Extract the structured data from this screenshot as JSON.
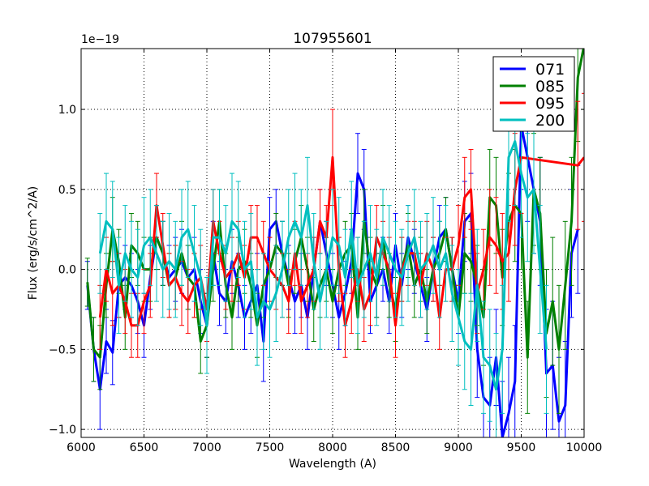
{
  "chart_data": {
    "type": "line",
    "title": "107955601",
    "xlabel": "Wavelength (A)",
    "ylabel": "Flux (erg/s/cm^2/A)",
    "offset_label": "1e−19",
    "xlim": [
      6000,
      10000
    ],
    "ylim": [
      -1.05,
      1.38
    ],
    "grid": true,
    "legend_position": "top-right",
    "xticks": [
      6000,
      6500,
      7000,
      7500,
      8000,
      8500,
      9000,
      9500,
      10000
    ],
    "xtick_labels": [
      "6000",
      "6500",
      "7000",
      "7500",
      "8000",
      "8500",
      "9000",
      "9500",
      "10000"
    ],
    "yticks": [
      -1.0,
      -0.5,
      0.0,
      0.5,
      1.0
    ],
    "ytick_labels": [
      "−1.0",
      "−0.5",
      "0.0",
      "0.5",
      "1.0"
    ],
    "series": [
      {
        "name": "071",
        "color": "#0000ff",
        "x": [
          6050,
          6100,
          6150,
          6200,
          6250,
          6300,
          6350,
          6400,
          6450,
          6500,
          6550,
          6600,
          6650,
          6700,
          6750,
          6800,
          6850,
          6900,
          6950,
          7000,
          7050,
          7100,
          7150,
          7200,
          7250,
          7300,
          7350,
          7400,
          7450,
          7500,
          7550,
          7600,
          7650,
          7700,
          7750,
          7800,
          7850,
          7900,
          7950,
          8000,
          8050,
          8100,
          8150,
          8200,
          8250,
          8300,
          8350,
          8400,
          8450,
          8500,
          8550,
          8600,
          8650,
          8700,
          8750,
          8800,
          8850,
          8900,
          8950,
          9000,
          9050,
          9100,
          9150,
          9200,
          9250,
          9300,
          9350,
          9400,
          9450,
          9500,
          9550,
          9600,
          9650,
          9700,
          9750,
          9800,
          9850,
          9900,
          9950
        ],
        "y": [
          -0.1,
          -0.5,
          -0.75,
          -0.45,
          -0.52,
          -0.1,
          -0.05,
          -0.1,
          -0.2,
          -0.35,
          -0.05,
          0.2,
          0.1,
          -0.05,
          0.0,
          0.05,
          -0.05,
          0.0,
          -0.2,
          -0.35,
          0.1,
          -0.15,
          -0.2,
          0.05,
          -0.1,
          -0.3,
          -0.2,
          -0.1,
          -0.45,
          0.25,
          0.3,
          0.1,
          -0.05,
          -0.2,
          -0.1,
          -0.3,
          0.0,
          0.3,
          0.1,
          -0.1,
          -0.3,
          -0.15,
          0.05,
          0.6,
          0.5,
          -0.2,
          -0.1,
          0.0,
          -0.2,
          0.15,
          -0.1,
          0.2,
          0.05,
          -0.1,
          -0.25,
          0.0,
          0.2,
          0.25,
          0.0,
          -0.2,
          0.3,
          0.35,
          -0.5,
          -0.8,
          -0.85,
          -0.55,
          -1.05,
          -0.9,
          -0.7,
          0.9,
          0.7,
          0.5,
          0.3,
          -0.65,
          -0.6,
          -0.95,
          -0.85,
          0.1,
          0.25
        ],
        "error": [
          0.15,
          0.2,
          0.25,
          0.2,
          0.2,
          0.2,
          0.2,
          0.2,
          0.2,
          0.2,
          0.2,
          0.2,
          0.2,
          0.2,
          0.2,
          0.2,
          0.2,
          0.2,
          0.2,
          0.2,
          0.2,
          0.2,
          0.2,
          0.2,
          0.2,
          0.2,
          0.2,
          0.2,
          0.25,
          0.2,
          0.2,
          0.2,
          0.2,
          0.2,
          0.2,
          0.2,
          0.2,
          0.2,
          0.2,
          0.2,
          0.2,
          0.2,
          0.2,
          0.25,
          0.25,
          0.2,
          0.2,
          0.2,
          0.2,
          0.2,
          0.2,
          0.2,
          0.2,
          0.2,
          0.2,
          0.2,
          0.2,
          0.2,
          0.2,
          0.2,
          0.25,
          0.25,
          0.3,
          0.3,
          0.3,
          0.3,
          0.35,
          0.35,
          0.35,
          0.4,
          0.4,
          0.4,
          0.4,
          0.4,
          0.4,
          0.4,
          0.4,
          0.4,
          0.4
        ]
      },
      {
        "name": "085",
        "color": "#008000",
        "x": [
          6050,
          6100,
          6150,
          6200,
          6250,
          6300,
          6350,
          6400,
          6450,
          6500,
          6550,
          6600,
          6650,
          6700,
          6750,
          6800,
          6850,
          6900,
          6950,
          7000,
          7050,
          7100,
          7150,
          7200,
          7250,
          7300,
          7350,
          7400,
          7450,
          7500,
          7550,
          7600,
          7650,
          7700,
          7750,
          7800,
          7850,
          7900,
          7950,
          8000,
          8050,
          8100,
          8150,
          8200,
          8250,
          8300,
          8350,
          8400,
          8450,
          8500,
          8550,
          8600,
          8650,
          8700,
          8750,
          8800,
          8850,
          8900,
          8950,
          9000,
          9050,
          9100,
          9150,
          9200,
          9250,
          9300,
          9350,
          9400,
          9450,
          9500,
          9550,
          9600,
          9650,
          9700,
          9750,
          9800,
          9850,
          9900,
          9950,
          10000
        ],
        "y": [
          -0.08,
          -0.5,
          -0.55,
          -0.1,
          0.25,
          0.05,
          -0.3,
          0.15,
          0.1,
          0.0,
          0.0,
          0.2,
          0.1,
          -0.1,
          -0.05,
          0.1,
          -0.05,
          -0.1,
          -0.45,
          -0.35,
          0.0,
          0.3,
          -0.1,
          -0.3,
          0.0,
          0.05,
          -0.1,
          -0.35,
          -0.1,
          0.0,
          0.15,
          0.1,
          -0.1,
          0.05,
          0.2,
          0.0,
          -0.25,
          -0.1,
          0.0,
          -0.2,
          0.0,
          0.1,
          0.15,
          -0.3,
          0.3,
          0.0,
          -0.1,
          0.2,
          -0.1,
          -0.25,
          0.0,
          0.15,
          -0.1,
          0.0,
          -0.2,
          0.0,
          0.1,
          0.25,
          0.0,
          -0.3,
          0.1,
          0.05,
          -0.1,
          -0.3,
          0.45,
          0.4,
          -0.05,
          0.3,
          0.4,
          0.35,
          -0.55,
          0.5,
          0.35,
          -0.4,
          -0.2,
          -0.5,
          -0.1,
          0.3,
          1.2,
          1.4
        ],
        "error": [
          0.15,
          0.2,
          0.2,
          0.2,
          0.2,
          0.2,
          0.2,
          0.2,
          0.2,
          0.2,
          0.2,
          0.2,
          0.2,
          0.2,
          0.2,
          0.2,
          0.2,
          0.2,
          0.2,
          0.2,
          0.2,
          0.2,
          0.2,
          0.2,
          0.2,
          0.2,
          0.2,
          0.2,
          0.2,
          0.2,
          0.2,
          0.2,
          0.2,
          0.2,
          0.2,
          0.2,
          0.2,
          0.2,
          0.2,
          0.2,
          0.2,
          0.2,
          0.2,
          0.2,
          0.2,
          0.2,
          0.2,
          0.2,
          0.2,
          0.2,
          0.2,
          0.2,
          0.2,
          0.2,
          0.2,
          0.2,
          0.2,
          0.2,
          0.2,
          0.2,
          0.25,
          0.25,
          0.25,
          0.3,
          0.3,
          0.3,
          0.3,
          0.3,
          0.35,
          0.35,
          0.35,
          0.35,
          0.35,
          0.4,
          0.4,
          0.4,
          0.4,
          0.4,
          0.4,
          0.4
        ]
      },
      {
        "name": "095",
        "color": "#ff0000",
        "x": [
          6150,
          6200,
          6250,
          6300,
          6350,
          6400,
          6450,
          6500,
          6550,
          6600,
          6650,
          6700,
          6750,
          6800,
          6850,
          6900,
          6950,
          7000,
          7050,
          7100,
          7150,
          7200,
          7250,
          7300,
          7350,
          7400,
          7450,
          7500,
          7550,
          7600,
          7650,
          7700,
          7750,
          7800,
          7850,
          7900,
          7950,
          8000,
          8050,
          8100,
          8150,
          8200,
          8250,
          8300,
          8350,
          8400,
          8450,
          8500,
          8550,
          8600,
          8650,
          8700,
          8750,
          8800,
          8850,
          8900,
          8950,
          9000,
          9050,
          9100,
          9150,
          9200,
          9250,
          9300,
          9350,
          9400,
          9450,
          9500,
          9950,
          10000
        ],
        "y": [
          -0.3,
          0.0,
          -0.15,
          -0.1,
          -0.2,
          -0.35,
          -0.35,
          -0.2,
          -0.1,
          0.4,
          0.15,
          -0.1,
          -0.05,
          -0.15,
          -0.2,
          -0.1,
          -0.05,
          -0.25,
          0.3,
          0.1,
          -0.05,
          0.0,
          0.1,
          -0.05,
          0.2,
          0.2,
          0.1,
          0.0,
          -0.05,
          -0.1,
          -0.2,
          0.1,
          -0.2,
          -0.1,
          0.0,
          0.3,
          0.2,
          0.7,
          0.0,
          -0.35,
          -0.2,
          0.0,
          -0.25,
          -0.15,
          0.2,
          0.1,
          0.0,
          -0.35,
          0.0,
          0.1,
          0.1,
          -0.1,
          0.1,
          0.0,
          -0.3,
          0.0,
          0.0,
          0.15,
          0.45,
          0.5,
          -0.15,
          0.0,
          0.2,
          0.15,
          0.05,
          0.1,
          0.5,
          0.7,
          0.65,
          0.7
        ],
        "error": [
          0.2,
          0.2,
          0.2,
          0.2,
          0.2,
          0.2,
          0.2,
          0.2,
          0.2,
          0.2,
          0.2,
          0.2,
          0.2,
          0.2,
          0.2,
          0.2,
          0.2,
          0.2,
          0.2,
          0.2,
          0.2,
          0.2,
          0.2,
          0.2,
          0.2,
          0.2,
          0.2,
          0.2,
          0.2,
          0.2,
          0.2,
          0.2,
          0.2,
          0.2,
          0.2,
          0.2,
          0.2,
          0.3,
          0.2,
          0.2,
          0.2,
          0.2,
          0.2,
          0.2,
          0.2,
          0.2,
          0.2,
          0.2,
          0.2,
          0.2,
          0.2,
          0.2,
          0.2,
          0.2,
          0.2,
          0.2,
          0.2,
          0.25,
          0.25,
          0.25,
          0.25,
          0.25,
          0.3,
          0.3,
          0.3,
          0.3,
          0.35,
          0.35,
          0.4,
          0.4
        ]
      },
      {
        "name": "200",
        "color": "#00bfbf",
        "x": [
          6150,
          6200,
          6250,
          6300,
          6350,
          6400,
          6450,
          6500,
          6550,
          6600,
          6650,
          6700,
          6750,
          6800,
          6850,
          6900,
          6950,
          7000,
          7050,
          7100,
          7150,
          7200,
          7250,
          7300,
          7350,
          7400,
          7450,
          7500,
          7550,
          7600,
          7650,
          7700,
          7750,
          7800,
          7850,
          7900,
          7950,
          8000,
          8050,
          8100,
          8150,
          8200,
          8250,
          8300,
          8350,
          8400,
          8450,
          8500,
          8550,
          8600,
          8650,
          8700,
          8750,
          8800,
          8850,
          8900,
          8950,
          9000,
          9050,
          9100,
          9150,
          9200,
          9250,
          9300,
          9350,
          9400,
          9450,
          9500,
          9550,
          9600,
          9650,
          9700
        ],
        "y": [
          0.1,
          0.3,
          0.25,
          -0.1,
          0.1,
          0.0,
          -0.05,
          0.15,
          0.2,
          0.1,
          0.0,
          0.05,
          0.0,
          0.2,
          0.25,
          0.1,
          -0.05,
          -0.35,
          0.2,
          0.2,
          0.1,
          0.3,
          0.25,
          0.0,
          0.05,
          -0.3,
          -0.2,
          -0.25,
          -0.15,
          0.0,
          0.2,
          0.3,
          0.2,
          0.4,
          0.05,
          -0.2,
          0.0,
          0.2,
          0.15,
          -0.05,
          0.25,
          -0.1,
          0.0,
          0.1,
          -0.05,
          0.2,
          0.1,
          0.0,
          -0.05,
          0.1,
          0.2,
          0.0,
          0.05,
          0.15,
          0.0,
          0.1,
          -0.15,
          -0.3,
          -0.45,
          -0.5,
          -0.1,
          -0.55,
          -0.6,
          -0.75,
          -0.5,
          0.7,
          0.8,
          0.6,
          0.45,
          0.5,
          0.0,
          -0.5
        ],
        "error": [
          0.25,
          0.3,
          0.3,
          0.3,
          0.3,
          0.3,
          0.3,
          0.3,
          0.3,
          0.3,
          0.3,
          0.3,
          0.3,
          0.3,
          0.3,
          0.3,
          0.3,
          0.3,
          0.3,
          0.3,
          0.3,
          0.3,
          0.3,
          0.3,
          0.3,
          0.3,
          0.3,
          0.3,
          0.3,
          0.3,
          0.3,
          0.3,
          0.3,
          0.3,
          0.3,
          0.3,
          0.3,
          0.3,
          0.3,
          0.3,
          0.3,
          0.3,
          0.3,
          0.3,
          0.3,
          0.3,
          0.3,
          0.3,
          0.3,
          0.3,
          0.3,
          0.3,
          0.3,
          0.3,
          0.3,
          0.3,
          0.3,
          0.3,
          0.3,
          0.35,
          0.35,
          0.35,
          0.35,
          0.35,
          0.4,
          0.4,
          0.4,
          0.4,
          0.4,
          0.4,
          0.4,
          0.4
        ]
      }
    ]
  }
}
